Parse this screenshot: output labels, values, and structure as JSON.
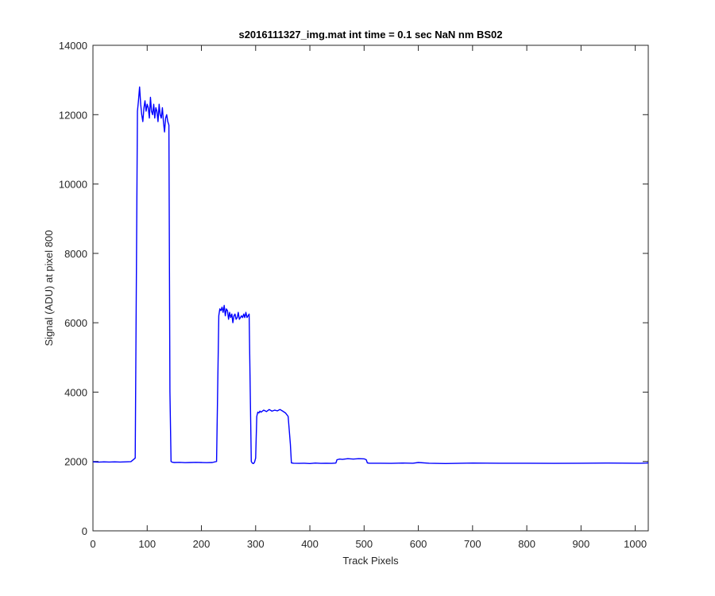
{
  "chart_data": {
    "type": "line",
    "title": "s2016111327_img.mat int time = 0.1 sec  NaN nm BS02",
    "xlabel": "Track Pixels",
    "ylabel": "Signal (ADU) at pixel 800",
    "xlim": [
      0,
      1024
    ],
    "ylim": [
      0,
      14000
    ],
    "xticks": [
      0,
      100,
      200,
      300,
      400,
      500,
      600,
      700,
      800,
      900,
      1000
    ],
    "yticks": [
      0,
      2000,
      4000,
      6000,
      8000,
      10000,
      12000,
      14000
    ],
    "xtick_labels": [
      "0",
      "100",
      "200",
      "300",
      "400",
      "500",
      "600",
      "700",
      "800",
      "900",
      "1000"
    ],
    "ytick_labels": [
      "0",
      "2000",
      "4000",
      "6000",
      "8000",
      "10000",
      "12000",
      "14000"
    ],
    "grid": false,
    "line_color": "#0000ff",
    "series": [
      {
        "x": [
          0,
          10,
          20,
          30,
          40,
          50,
          60,
          70,
          78,
          82,
          84,
          86,
          88,
          90,
          92,
          94,
          96,
          98,
          100,
          102,
          104,
          106,
          108,
          110,
          112,
          114,
          116,
          118,
          120,
          122,
          124,
          126,
          128,
          130,
          132,
          134,
          136,
          138,
          140,
          142,
          144,
          146,
          150,
          160,
          170,
          180,
          190,
          200,
          210,
          220,
          228,
          232,
          234,
          236,
          238,
          240,
          242,
          244,
          246,
          248,
          250,
          252,
          254,
          256,
          258,
          260,
          262,
          264,
          266,
          268,
          270,
          272,
          274,
          276,
          278,
          280,
          282,
          284,
          286,
          288,
          290,
          292,
          294,
          296,
          298,
          300,
          302,
          304,
          306,
          308,
          310,
          315,
          320,
          325,
          330,
          335,
          340,
          345,
          350,
          355,
          360,
          364,
          366,
          370,
          380,
          390,
          400,
          410,
          420,
          430,
          440,
          448,
          450,
          455,
          460,
          470,
          480,
          490,
          500,
          504,
          506,
          510,
          530,
          550,
          570,
          590,
          600,
          620,
          650,
          700,
          750,
          800,
          850,
          900,
          950,
          1000,
          1010,
          1020,
          1024
        ],
        "y": [
          1990,
          1980,
          1990,
          1985,
          1990,
          1985,
          1990,
          1995,
          2100,
          12100,
          12400,
          12800,
          12300,
          12000,
          11800,
          12200,
          12400,
          12100,
          12300,
          12200,
          11900,
          12500,
          12100,
          12000,
          12300,
          11900,
          12200,
          12100,
          11800,
          12300,
          12000,
          11900,
          12200,
          11800,
          11500,
          11900,
          12000,
          11800,
          11700,
          4000,
          2000,
          1980,
          1970,
          1975,
          1965,
          1970,
          1975,
          1970,
          1965,
          1970,
          2000,
          6200,
          6400,
          6350,
          6450,
          6300,
          6500,
          6200,
          6400,
          6350,
          6100,
          6300,
          6150,
          6250,
          6000,
          6200,
          6250,
          6100,
          6150,
          6300,
          6100,
          6150,
          6200,
          6150,
          6250,
          6150,
          6300,
          6150,
          6200,
          6250,
          4000,
          2000,
          1950,
          1940,
          1980,
          2100,
          3300,
          3420,
          3400,
          3450,
          3420,
          3480,
          3440,
          3500,
          3450,
          3480,
          3460,
          3500,
          3450,
          3400,
          3300,
          2500,
          1960,
          1950,
          1945,
          1950,
          1940,
          1955,
          1945,
          1950,
          1945,
          1955,
          2050,
          2070,
          2060,
          2080,
          2070,
          2080,
          2075,
          2050,
          1960,
          1950,
          1950,
          1945,
          1955,
          1950,
          1970,
          1950,
          1940,
          1955,
          1950,
          1950,
          1945,
          1950,
          1955,
          1950,
          1950,
          1955,
          1960
        ]
      }
    ]
  }
}
